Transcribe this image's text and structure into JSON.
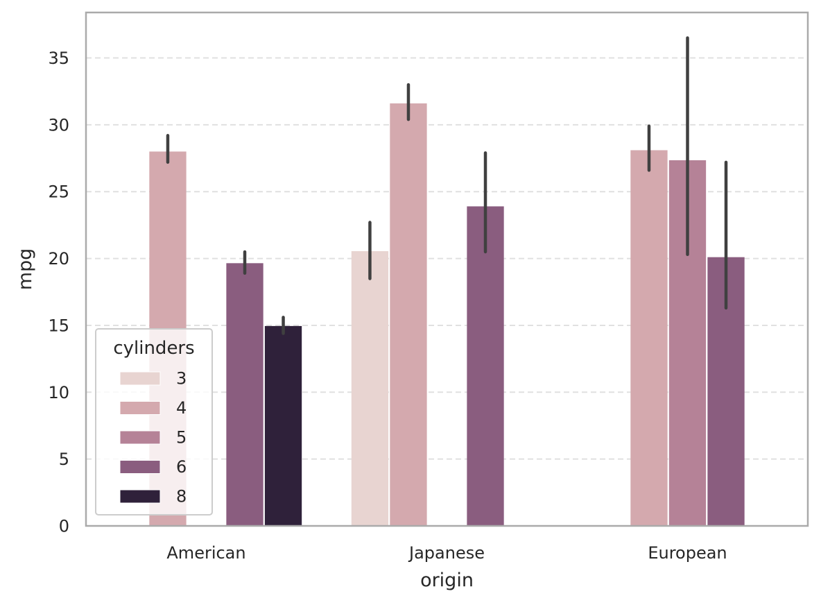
{
  "chart_data": {
    "type": "bar",
    "xlabel": "origin",
    "ylabel": "mpg",
    "categories": [
      "American",
      "Japanese",
      "European"
    ],
    "ylim": [
      0,
      38.4
    ],
    "yticks": [
      0,
      5,
      10,
      15,
      20,
      25,
      30,
      35
    ],
    "grid": "horizontal-dashed",
    "legend": {
      "title": "cylinders",
      "placement": "lower-left"
    },
    "series": [
      {
        "name": "3",
        "color": "#e8d4d1",
        "values": [
          null,
          20.55,
          null
        ],
        "ci": [
          null,
          [
            18.5,
            22.7
          ],
          null
        ]
      },
      {
        "name": "4",
        "color": "#d4a9ae",
        "values": [
          28.0,
          31.6,
          28.1
        ],
        "ci": [
          [
            27.2,
            29.2
          ],
          [
            30.4,
            33.0
          ],
          [
            26.6,
            29.9
          ]
        ]
      },
      {
        "name": "5",
        "color": "#b58297",
        "values": [
          null,
          null,
          27.35
        ],
        "ci": [
          null,
          null,
          [
            20.3,
            36.5
          ]
        ]
      },
      {
        "name": "6",
        "color": "#8a5d7f",
        "values": [
          19.65,
          23.9,
          20.1
        ],
        "ci": [
          [
            18.9,
            20.5
          ],
          [
            20.5,
            27.9
          ],
          [
            16.3,
            27.2
          ]
        ]
      },
      {
        "name": "8",
        "color": "#2f213a",
        "values": [
          14.95,
          null,
          null
        ],
        "ci": [
          [
            14.4,
            15.6
          ],
          null,
          null
        ]
      }
    ]
  }
}
